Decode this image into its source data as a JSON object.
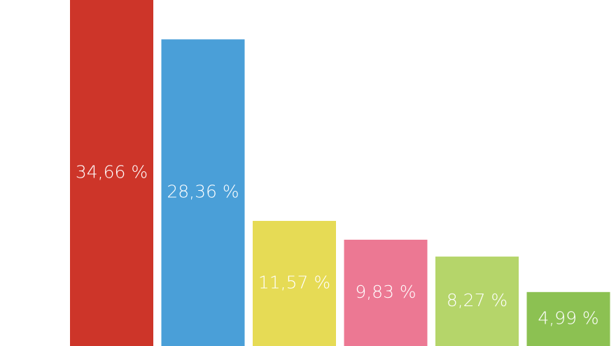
{
  "chart_data": {
    "type": "bar",
    "categories": [
      null,
      null,
      null,
      null,
      null,
      null
    ],
    "values": [
      34.66,
      28.36,
      11.57,
      9.83,
      8.27,
      4.99
    ],
    "value_labels": [
      "34,66 %",
      "28,36 %",
      "11,57 %",
      "9,83 %",
      "8,27 %",
      "4,99 %"
    ],
    "colors": [
      "#cd3529",
      "#4a9fd8",
      "#e6db55",
      "#ec7893",
      "#b5d56a",
      "#8cc152"
    ],
    "ylim": [
      0,
      32
    ]
  }
}
